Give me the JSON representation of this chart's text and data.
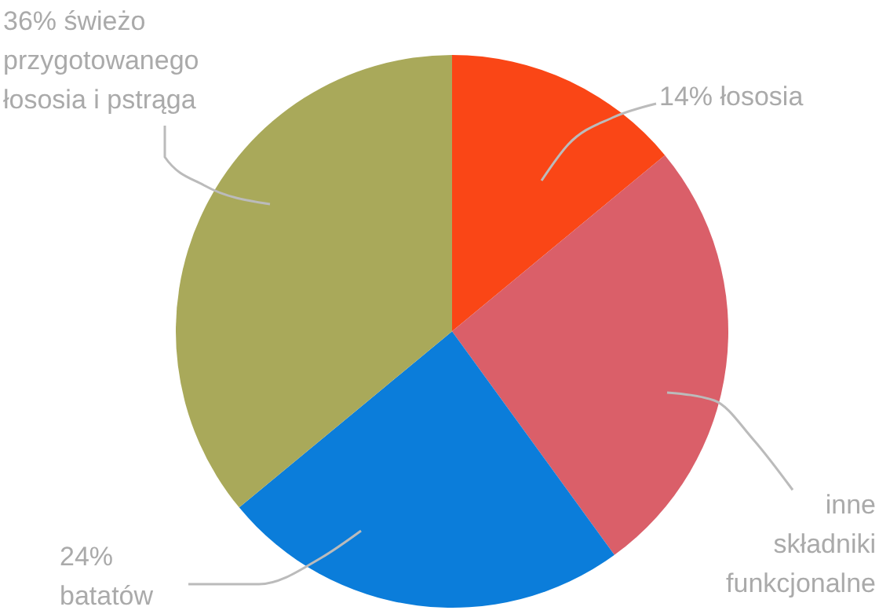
{
  "chart_data": {
    "type": "pie",
    "categories": [
      "14% łososia",
      "inne składniki funkcjonalne",
      "24% batatów",
      "36% świeżo przygotowanego łososia i pstrąga"
    ],
    "values": [
      14,
      26,
      24,
      36
    ],
    "colors": [
      "#fa4616",
      "#da5f69",
      "#0b7dda",
      "#a9a95a"
    ]
  }
}
